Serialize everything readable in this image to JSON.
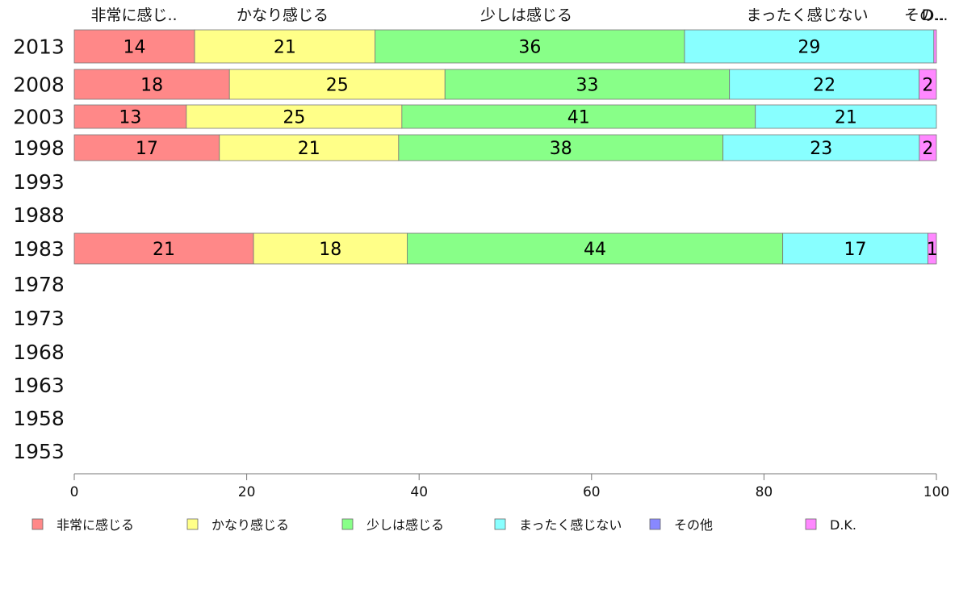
{
  "chart_data": {
    "type": "bar",
    "orientation": "horizontal",
    "stacked": true,
    "categories": [
      "2013",
      "2008",
      "2003",
      "1998",
      "1993",
      "1988",
      "1983",
      "1978",
      "1973",
      "1968",
      "1963",
      "1958",
      "1953"
    ],
    "series_top_labels": [
      "非常に感じ..",
      "かなり感じる",
      "少しは感じる",
      "まったく感じない",
      "その..",
      "D..."
    ],
    "series": [
      {
        "name": "非常に感じる",
        "color": "#ff8888",
        "values": [
          14,
          18,
          13,
          17,
          null,
          null,
          21,
          null,
          null,
          null,
          null,
          null,
          null
        ]
      },
      {
        "name": "かなり感じる",
        "color": "#ffff88",
        "values": [
          21,
          25,
          25,
          21,
          null,
          null,
          18,
          null,
          null,
          null,
          null,
          null,
          null
        ]
      },
      {
        "name": "少しは感じる",
        "color": "#88ff88",
        "values": [
          36,
          33,
          41,
          38,
          null,
          null,
          44,
          null,
          null,
          null,
          null,
          null,
          null
        ]
      },
      {
        "name": "まったく感じない",
        "color": "#88ffff",
        "values": [
          29,
          22,
          21,
          23,
          null,
          null,
          17,
          null,
          null,
          null,
          null,
          null,
          null
        ]
      },
      {
        "name": "その他",
        "color": "#8888ff",
        "values": [
          0,
          0,
          0,
          0,
          null,
          null,
          0,
          null,
          null,
          null,
          null,
          null,
          null
        ]
      },
      {
        "name": "D.K.",
        "color": "#ff88ff",
        "values": [
          0.3,
          2,
          0,
          2,
          null,
          null,
          1,
          null,
          null,
          null,
          null,
          null,
          null
        ]
      }
    ],
    "xlim": [
      0,
      100
    ],
    "xticks": [
      0,
      20,
      40,
      60,
      80,
      100
    ],
    "grid": false,
    "legend_position": "bottom"
  }
}
